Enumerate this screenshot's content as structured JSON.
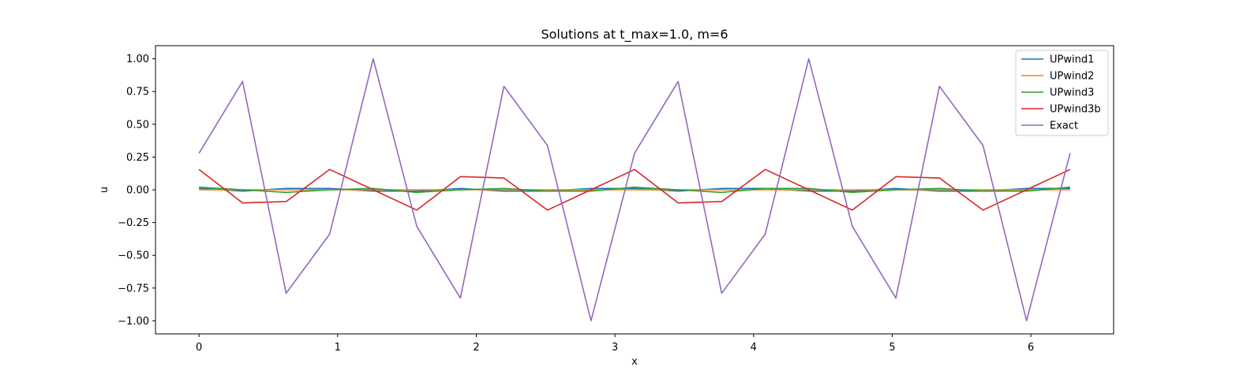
{
  "chart_data": {
    "type": "line",
    "title": "Solutions at t_max=1.0, m=6",
    "xlabel": "x",
    "ylabel": "u",
    "xlim": [
      -0.314,
      6.597
    ],
    "ylim": [
      -1.1,
      1.1
    ],
    "xticks": [
      0,
      1,
      2,
      3,
      4,
      5,
      6
    ],
    "xtick_labels": [
      "0",
      "1",
      "2",
      "3",
      "4",
      "5",
      "6"
    ],
    "yticks": [
      1.0,
      0.75,
      0.5,
      0.25,
      0.0,
      -0.25,
      -0.5,
      -0.75,
      -1.0
    ],
    "ytick_labels": [
      "1.00",
      "0.75",
      "0.50",
      "0.25",
      "0.00",
      "−0.25",
      "−0.50",
      "−0.75",
      "−1.00"
    ],
    "grid": false,
    "legend_position": "upper right",
    "x": [
      0.0,
      0.3142,
      0.6283,
      0.9425,
      1.2566,
      1.5708,
      1.885,
      2.1991,
      2.5133,
      2.8274,
      3.1416,
      3.4558,
      3.7699,
      4.0841,
      4.3982,
      4.7124,
      5.0265,
      5.3407,
      5.6549,
      5.969,
      6.2832
    ],
    "series": [
      {
        "name": "UPwind1",
        "color": "#1f77b4",
        "values": [
          0.01,
          -0.01,
          0.01,
          0.01,
          -0.01,
          -0.01,
          0.01,
          -0.01,
          -0.01,
          0.01,
          0.01,
          -0.01,
          0.01,
          0.01,
          -0.01,
          -0.01,
          0.01,
          -0.01,
          -0.01,
          0.01,
          0.01
        ]
      },
      {
        "name": "UPwind2",
        "color": "#ff7f0e",
        "values": [
          0.0,
          0.0,
          0.0,
          0.0,
          0.0,
          0.0,
          0.0,
          0.0,
          0.0,
          0.0,
          0.0,
          0.0,
          0.0,
          0.0,
          0.0,
          0.0,
          0.0,
          0.0,
          0.0,
          0.0,
          0.0
        ]
      },
      {
        "name": "UPwind3",
        "color": "#2ca02c",
        "values": [
          0.02,
          0.0,
          -0.02,
          0.0,
          0.01,
          -0.02,
          0.0,
          0.01,
          -0.01,
          -0.01,
          0.02,
          0.0,
          -0.02,
          0.01,
          0.01,
          -0.02,
          0.0,
          0.01,
          -0.01,
          -0.01,
          0.02
        ]
      },
      {
        "name": "UPwind3b",
        "color": "#d62728",
        "values": [
          0.155,
          -0.1,
          -0.09,
          0.155,
          0.0,
          -0.155,
          0.1,
          0.09,
          -0.155,
          0.0,
          0.155,
          -0.1,
          -0.09,
          0.155,
          0.0,
          -0.155,
          0.1,
          0.09,
          -0.155,
          0.0,
          0.155
        ]
      },
      {
        "name": "Exact",
        "color": "#9467bd",
        "values": [
          0.279,
          0.827,
          -0.79,
          -0.338,
          1.0,
          -0.279,
          -0.827,
          0.79,
          0.338,
          -1.0,
          0.279,
          0.827,
          -0.79,
          -0.338,
          1.0,
          -0.279,
          -0.827,
          0.79,
          0.338,
          -1.0,
          0.279
        ]
      }
    ]
  }
}
